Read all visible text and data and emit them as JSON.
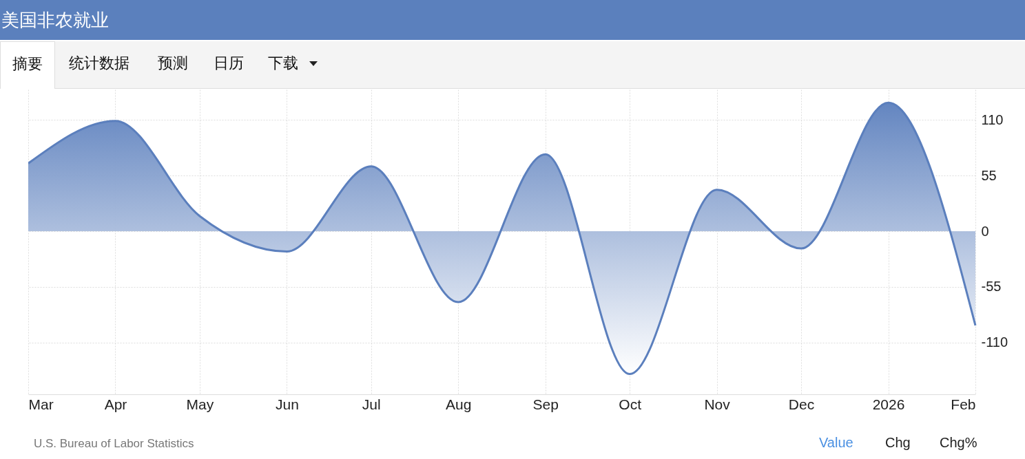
{
  "chart_data": {
    "type": "area",
    "title": "美国非农就业",
    "annotations": [
      "摘要",
      "统计数据",
      "预测",
      "日历",
      "下载",
      "U.S. Bureau of Labor Statistics",
      "Value",
      "Chg",
      "Chg%"
    ],
    "x": [
      "2025-03",
      "2025-04",
      "2025-05",
      "2025-06",
      "2025-07",
      "2025-08",
      "2025-09",
      "2025-10",
      "2025-11",
      "2025-12",
      "2026-01",
      "2026-02"
    ],
    "series": [
      {
        "color": "#5b7fbd",
        "values": [
          67,
          109,
          15,
          -20,
          64,
          -70,
          76,
          -141,
          41,
          -17,
          127,
          -93
        ]
      }
    ],
    "xlim": [
      "2025-03",
      "2026-02"
    ],
    "xticks": [
      {
        "value": "2025-03",
        "label": "Mar"
      },
      {
        "value": "2025-04",
        "label": "Apr"
      },
      {
        "value": "2025-05",
        "label": "May"
      },
      {
        "value": "2025-06",
        "label": "Jun"
      },
      {
        "value": "2025-07",
        "label": "Jul"
      },
      {
        "value": "2025-08",
        "label": "Aug"
      },
      {
        "value": "2025-09",
        "label": "Sep"
      },
      {
        "value": "2025-10",
        "label": "Oct"
      },
      {
        "value": "2025-11",
        "label": "Nov"
      },
      {
        "value": "2025-12",
        "label": "Dec"
      },
      {
        "value": "2026-01",
        "label": "2026"
      },
      {
        "value": "2026-02",
        "label": "Feb"
      }
    ],
    "ylim": [
      -161,
      140
    ],
    "yticks": [
      -110,
      -55,
      0,
      55,
      110
    ],
    "grid": true
  }
}
